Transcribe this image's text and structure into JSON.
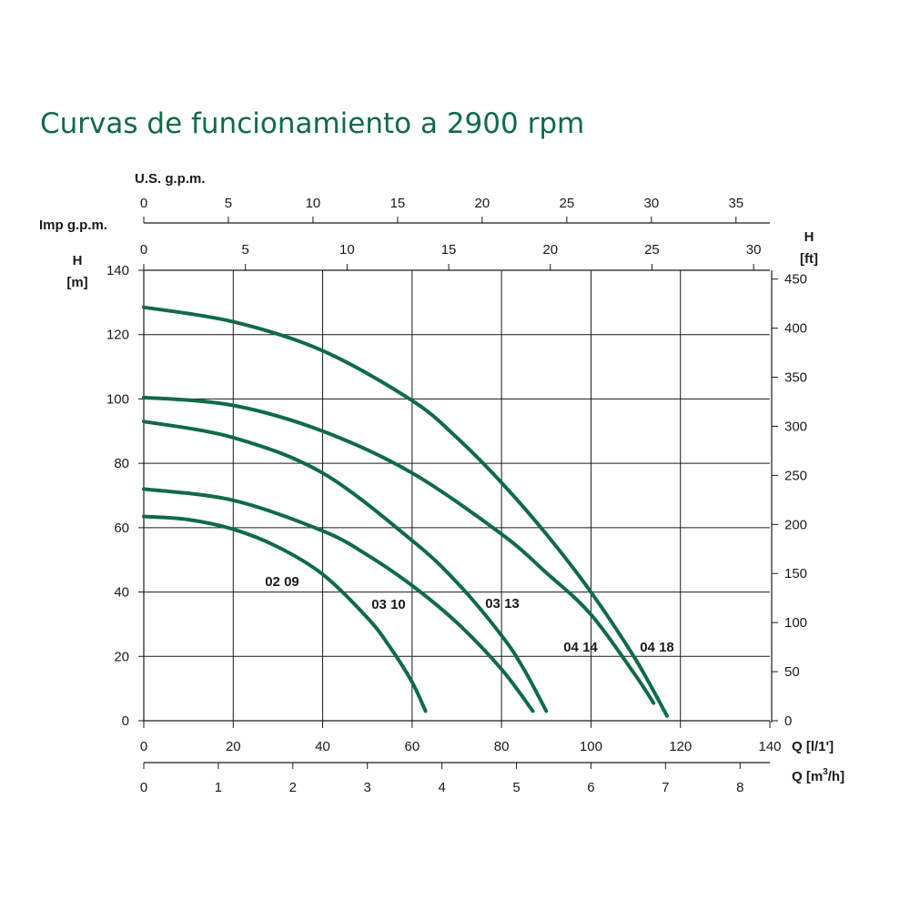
{
  "title": "Curvas de funcionamiento a 2900 rpm",
  "colors": {
    "curve": "#0f6b46",
    "title": "#0f6b46",
    "grid": "#1a1a1a"
  },
  "chart_data": {
    "type": "line",
    "x_axes": {
      "lmin": {
        "label": "Q [l/1']",
        "range": [
          0,
          140
        ],
        "ticks": [
          0,
          20,
          40,
          60,
          80,
          100,
          120,
          140
        ]
      },
      "m3h": {
        "label": "Q [m³/h]",
        "label_main": "Q [m",
        "label_sup": "3",
        "label_end": "/h]",
        "range": [
          0,
          8.4
        ],
        "ticks": [
          0,
          1,
          2,
          3,
          4,
          5,
          6,
          7,
          8
        ]
      },
      "imp_gpm": {
        "label": "Imp g.p.m.",
        "range": [
          0,
          30.8
        ],
        "ticks": [
          0,
          5,
          10,
          15,
          20,
          25,
          30
        ]
      },
      "us_gpm": {
        "label": "U.S. g.p.m.",
        "range": [
          0,
          37
        ],
        "ticks": [
          0,
          5,
          10,
          15,
          20,
          25,
          30,
          35
        ]
      }
    },
    "y_axes": {
      "m": {
        "label_top": "H",
        "label_bottom": "[m]",
        "range": [
          0,
          140
        ],
        "ticks": [
          0,
          20,
          40,
          60,
          80,
          100,
          120,
          140
        ]
      },
      "ft": {
        "label_top": "H",
        "label_bottom": "[ft]",
        "range": [
          0,
          459
        ],
        "ticks": [
          0,
          50,
          100,
          150,
          200,
          250,
          300,
          350,
          400,
          450
        ]
      }
    },
    "grid": true,
    "series": [
      {
        "name": "02 09",
        "x": [
          0,
          10,
          20,
          30,
          40,
          50,
          55,
          60,
          63
        ],
        "y": [
          63.5,
          62.5,
          59.5,
          54,
          45.5,
          32,
          23,
          12,
          3
        ]
      },
      {
        "name": "03 10",
        "x": [
          0,
          20,
          40,
          50,
          60,
          70,
          80,
          87
        ],
        "y": [
          72,
          68.5,
          59,
          51.5,
          42,
          30.5,
          16,
          3
        ]
      },
      {
        "name": "03 13",
        "x": [
          0,
          20,
          40,
          60,
          70,
          80,
          85,
          90
        ],
        "y": [
          93,
          88,
          77,
          56,
          43,
          26.5,
          16,
          3
        ]
      },
      {
        "name": "04 14",
        "x": [
          0,
          20,
          40,
          60,
          80,
          90,
          100,
          110,
          114
        ],
        "y": [
          100.5,
          98,
          90,
          77,
          58,
          46,
          33,
          14,
          5.5
        ]
      },
      {
        "name": "04 18",
        "x": [
          0,
          20,
          40,
          60,
          70,
          80,
          90,
          100,
          110,
          117
        ],
        "y": [
          128.5,
          124,
          115,
          99.5,
          88,
          74,
          58,
          40,
          19,
          1.5
        ]
      }
    ]
  }
}
